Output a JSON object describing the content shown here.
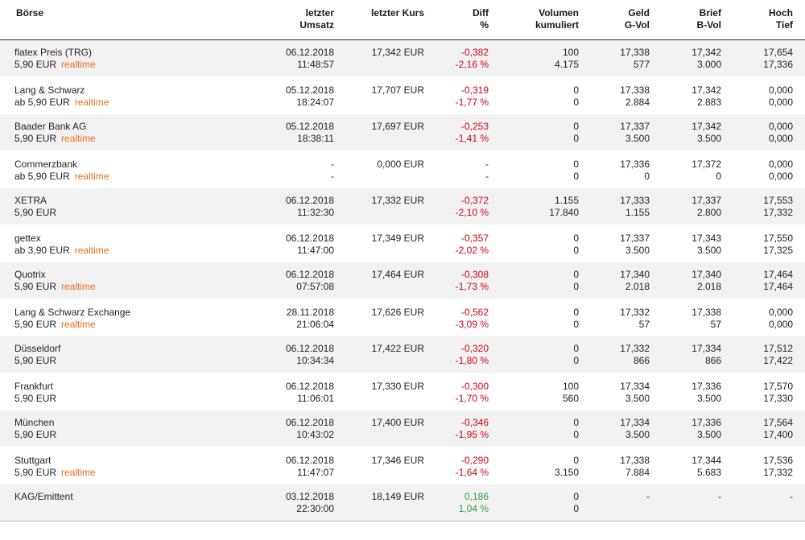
{
  "headers": {
    "boerse": "Börse",
    "umsatz": [
      "letzter",
      "Umsatz"
    ],
    "kurs": "letzter Kurs",
    "diff": [
      "Diff",
      "%"
    ],
    "volumen": [
      "Volumen",
      "kumuliert"
    ],
    "geld": [
      "Geld",
      "G-Vol"
    ],
    "brief": [
      "Brief",
      "B-Vol"
    ],
    "hoch": [
      "Hoch",
      "Tief"
    ]
  },
  "colors": {
    "negative": "#d0021b",
    "positive": "#2e9a3a",
    "realtime": "#ef6c1a"
  },
  "rows": [
    {
      "name": "flatex Preis (TRG)",
      "fee": "5,90 EUR",
      "realtime": "realtime",
      "date": "06.12.2018",
      "time": "11:48:57",
      "kurs": "17,342 EUR",
      "diff": "-0,382",
      "diff_pct": "-2,16 %",
      "trend": "neg",
      "vol": "100",
      "vol_kum": "4.175",
      "geld": "17,338",
      "g_vol": "577",
      "brief": "17,342",
      "b_vol": "3.000",
      "hoch": "17,654",
      "tief": "17,336"
    },
    {
      "name": "Lang & Schwarz",
      "fee": "ab 5,90 EUR",
      "realtime": "realtime",
      "date": "05.12.2018",
      "time": "18:24:07",
      "kurs": "17,707 EUR",
      "diff": "-0,319",
      "diff_pct": "-1,77 %",
      "trend": "neg",
      "vol": "0",
      "vol_kum": "0",
      "geld": "17,338",
      "g_vol": "2.884",
      "brief": "17,342",
      "b_vol": "2.883",
      "hoch": "0,000",
      "tief": "0,000"
    },
    {
      "name": "Baader Bank AG",
      "fee": "5,90 EUR",
      "realtime": "realtime",
      "date": "05.12.2018",
      "time": "18:38:11",
      "kurs": "17,697 EUR",
      "diff": "-0,253",
      "diff_pct": "-1,41 %",
      "trend": "neg",
      "vol": "0",
      "vol_kum": "0",
      "geld": "17,337",
      "g_vol": "3.500",
      "brief": "17,342",
      "b_vol": "3.500",
      "hoch": "0,000",
      "tief": "0,000"
    },
    {
      "name": "Commerzbank",
      "fee": "ab 5,90 EUR",
      "realtime": "realtime",
      "date": "-",
      "time": "-",
      "kurs": "0,000 EUR",
      "diff": "-",
      "diff_pct": "-",
      "trend": "none",
      "vol": "0",
      "vol_kum": "0",
      "geld": "17,336",
      "g_vol": "0",
      "brief": "17,372",
      "b_vol": "0",
      "hoch": "0,000",
      "tief": "0,000"
    },
    {
      "name": "XETRA",
      "fee": "5,90 EUR",
      "realtime": "",
      "date": "06.12.2018",
      "time": "11:32:30",
      "kurs": "17,332 EUR",
      "diff": "-0,372",
      "diff_pct": "-2,10 %",
      "trend": "neg",
      "vol": "1.155",
      "vol_kum": "17.840",
      "geld": "17,333",
      "g_vol": "1.155",
      "brief": "17,337",
      "b_vol": "2.800",
      "hoch": "17,553",
      "tief": "17,332"
    },
    {
      "name": "gettex",
      "fee": "ab 3,90 EUR",
      "realtime": "realtime",
      "date": "06.12.2018",
      "time": "11:47:00",
      "kurs": "17,349 EUR",
      "diff": "-0,357",
      "diff_pct": "-2,02 %",
      "trend": "neg",
      "vol": "0",
      "vol_kum": "0",
      "geld": "17,337",
      "g_vol": "3.500",
      "brief": "17,343",
      "b_vol": "3.500",
      "hoch": "17,550",
      "tief": "17,325"
    },
    {
      "name": "Quotrix",
      "fee": "5,90 EUR",
      "realtime": "realtime",
      "date": "06.12.2018",
      "time": "07:57:08",
      "kurs": "17,464 EUR",
      "diff": "-0,308",
      "diff_pct": "-1,73 %",
      "trend": "neg",
      "vol": "0",
      "vol_kum": "0",
      "geld": "17,340",
      "g_vol": "2.018",
      "brief": "17,340",
      "b_vol": "2.018",
      "hoch": "17,464",
      "tief": "17,464"
    },
    {
      "name": "Lang & Schwarz Exchange",
      "fee": "5,90 EUR",
      "realtime": "realtime",
      "date": "28.11.2018",
      "time": "21:06:04",
      "kurs": "17,626 EUR",
      "diff": "-0,562",
      "diff_pct": "-3,09 %",
      "trend": "neg",
      "vol": "0",
      "vol_kum": "0",
      "geld": "17,332",
      "g_vol": "57",
      "brief": "17,338",
      "b_vol": "57",
      "hoch": "0,000",
      "tief": "0,000"
    },
    {
      "name": "Düsseldorf",
      "fee": "5,90 EUR",
      "realtime": "",
      "date": "06.12.2018",
      "time": "10:34:34",
      "kurs": "17,422 EUR",
      "diff": "-0,320",
      "diff_pct": "-1,80 %",
      "trend": "neg",
      "vol": "0",
      "vol_kum": "0",
      "geld": "17,332",
      "g_vol": "866",
      "brief": "17,334",
      "b_vol": "866",
      "hoch": "17,512",
      "tief": "17,422"
    },
    {
      "name": "Frankfurt",
      "fee": "5,90 EUR",
      "realtime": "",
      "date": "06.12.2018",
      "time": "11:06:01",
      "kurs": "17,330 EUR",
      "diff": "-0,300",
      "diff_pct": "-1,70 %",
      "trend": "neg",
      "vol": "100",
      "vol_kum": "560",
      "geld": "17,334",
      "g_vol": "3.500",
      "brief": "17,336",
      "b_vol": "3.500",
      "hoch": "17,570",
      "tief": "17,330"
    },
    {
      "name": "München",
      "fee": "5,90 EUR",
      "realtime": "",
      "date": "06.12.2018",
      "time": "10:43:02",
      "kurs": "17,400 EUR",
      "diff": "-0,346",
      "diff_pct": "-1,95 %",
      "trend": "neg",
      "vol": "0",
      "vol_kum": "0",
      "geld": "17,334",
      "g_vol": "3.500",
      "brief": "17,336",
      "b_vol": "3.500",
      "hoch": "17,564",
      "tief": "17,400"
    },
    {
      "name": "Stuttgart",
      "fee": "5,90 EUR",
      "realtime": "realtime",
      "date": "06.12.2018",
      "time": "11:47:07",
      "kurs": "17,346 EUR",
      "diff": "-0,290",
      "diff_pct": "-1,64 %",
      "trend": "neg",
      "vol": "0",
      "vol_kum": "3.150",
      "geld": "17,338",
      "g_vol": "7.884",
      "brief": "17,344",
      "b_vol": "5.683",
      "hoch": "17,536",
      "tief": "17,332"
    },
    {
      "name": "KAG/Emittent",
      "fee": "",
      "realtime": "",
      "date": "03.12.2018",
      "time": "22:30:00",
      "kurs": "18,149 EUR",
      "diff": "0,186",
      "diff_pct": "1,04 %",
      "trend": "pos",
      "vol": "0",
      "vol_kum": "0",
      "geld": "-",
      "g_vol": "",
      "brief": "-",
      "b_vol": "",
      "hoch": "-",
      "tief": ""
    }
  ]
}
